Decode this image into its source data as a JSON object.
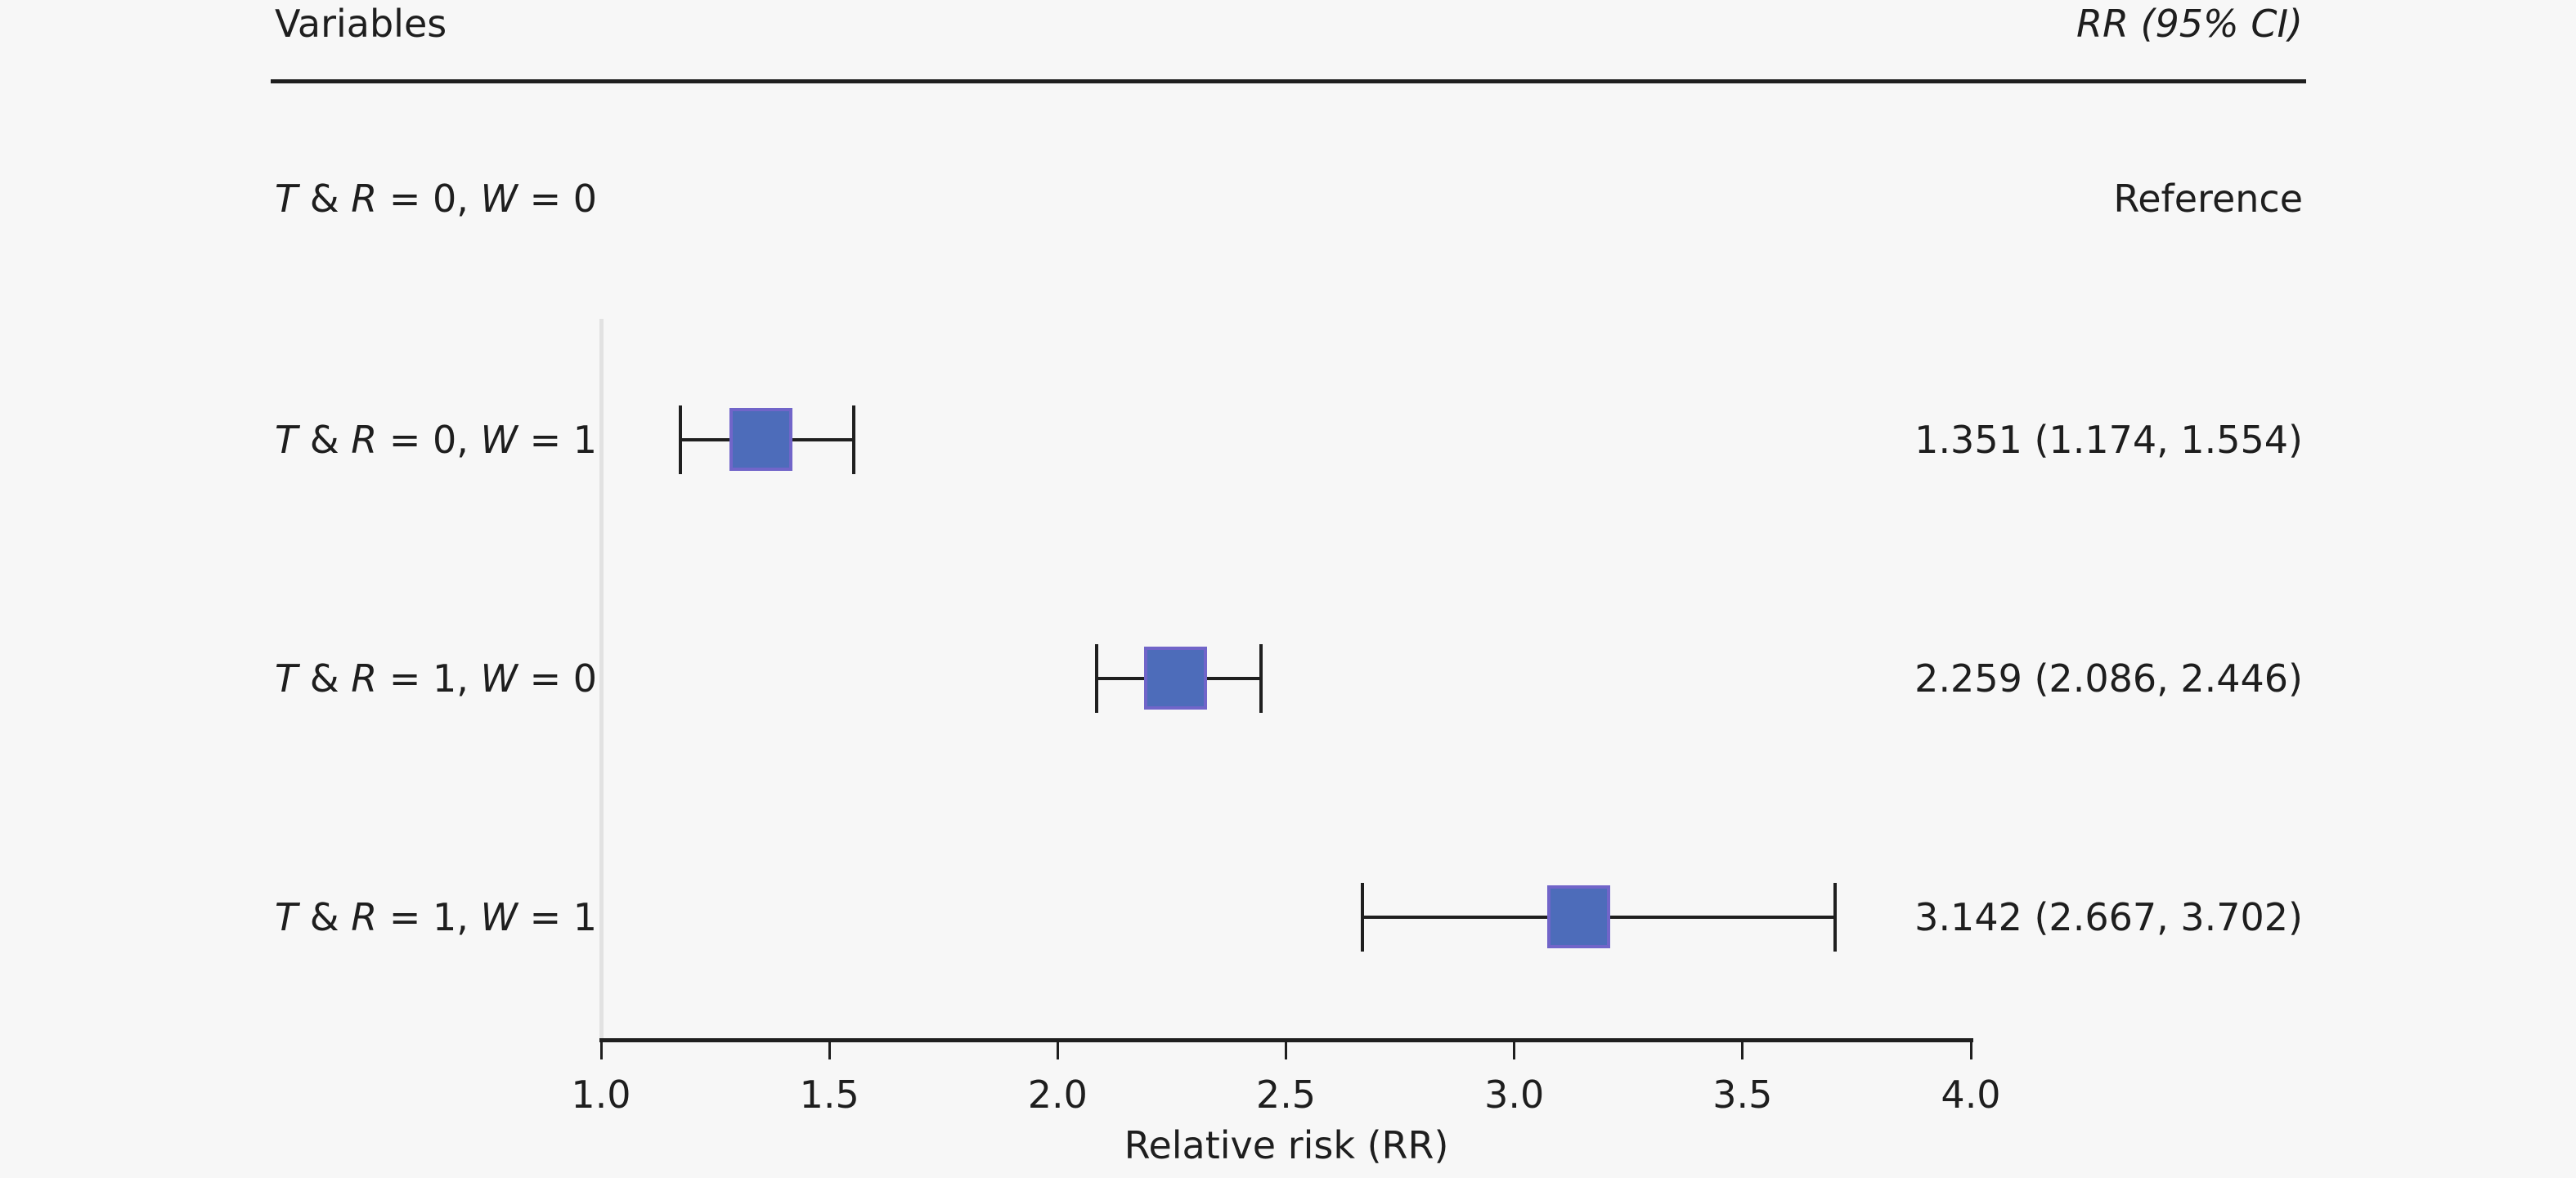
{
  "columns": {
    "left": "Variables",
    "right": "RR (95% CI)"
  },
  "rows": [
    {
      "label": "T & R = 0, W = 0",
      "label_parts": [
        {
          "t": "T",
          "i": 1
        },
        {
          "t": " & ",
          "i": 0
        },
        {
          "t": "R",
          "i": 1
        },
        {
          "t": " = 0, ",
          "i": 0
        },
        {
          "t": "W",
          "i": 1
        },
        {
          "t": " = 0",
          "i": 0
        }
      ],
      "value": "Reference"
    },
    {
      "label": "T & R = 0, W = 1",
      "label_parts": [
        {
          "t": "T",
          "i": 1
        },
        {
          "t": " & ",
          "i": 0
        },
        {
          "t": "R",
          "i": 1
        },
        {
          "t": " = 0, ",
          "i": 0
        },
        {
          "t": "W",
          "i": 1
        },
        {
          "t": " = 1",
          "i": 0
        }
      ],
      "value": "1.351 (1.174, 1.554)"
    },
    {
      "label": "T & R = 1, W = 0",
      "label_parts": [
        {
          "t": "T",
          "i": 1
        },
        {
          "t": " & ",
          "i": 0
        },
        {
          "t": "R",
          "i": 1
        },
        {
          "t": " = 1, ",
          "i": 0
        },
        {
          "t": "W",
          "i": 1
        },
        {
          "t": " = 0",
          "i": 0
        }
      ],
      "value": "2.259 (2.086, 2.446)"
    },
    {
      "label": "T & R = 1, W = 1",
      "label_parts": [
        {
          "t": "T",
          "i": 1
        },
        {
          "t": " & ",
          "i": 0
        },
        {
          "t": "R",
          "i": 1
        },
        {
          "t": " = 1, ",
          "i": 0
        },
        {
          "t": "W",
          "i": 1
        },
        {
          "t": " = 1",
          "i": 0
        }
      ],
      "value": "3.142 (2.667, 3.702)"
    }
  ],
  "chart_data": {
    "type": "scatter",
    "subtype": "forest-plot",
    "title": "",
    "xlabel": "Relative risk (RR)",
    "xlim": [
      1.0,
      4.0
    ],
    "x_ticks": [
      1.0,
      1.5,
      2.0,
      2.5,
      3.0,
      3.5,
      4.0
    ],
    "grid": false,
    "categories": [
      "T & R = 0, W = 0",
      "T & R = 0, W = 1",
      "T & R = 1, W = 0",
      "T & R = 1, W = 1"
    ],
    "rr": [
      null,
      1.351,
      2.259,
      3.142
    ],
    "ci_low": [
      null,
      1.174,
      2.086,
      2.667
    ],
    "ci_high": [
      null,
      1.554,
      2.446,
      3.702
    ],
    "reference_row_value": "Reference",
    "colors": {
      "marker_fill": "#4d6cba",
      "marker_border": "#7165c9",
      "axis": "#1f1f1f",
      "reference_line": "#e2e2e2",
      "background": "#f7f7f7",
      "text": "#1e1e1e"
    }
  }
}
